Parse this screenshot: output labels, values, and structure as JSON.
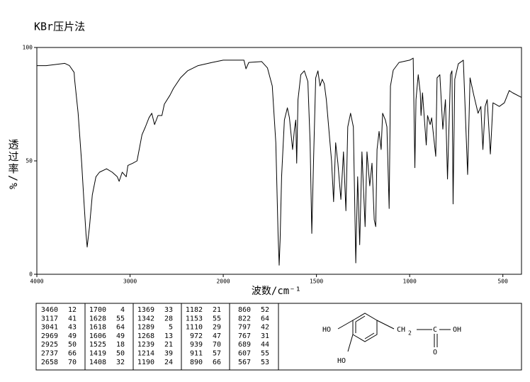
{
  "chart_data": {
    "type": "line",
    "title": "KBr压片法",
    "xlabel": "波数/cm⁻¹",
    "ylabel": "透过率/%",
    "x_scale": "tick-spaced",
    "xlim": [
      4000,
      400
    ],
    "xticks": [
      4000,
      3000,
      2000,
      1500,
      1000,
      500
    ],
    "ylim": [
      0,
      100
    ],
    "yticks": [
      0,
      50,
      100
    ],
    "series": [
      {
        "color": "#000000",
        "x": [
          4000,
          3900,
          3800,
          3700,
          3650,
          3600,
          3595,
          3557,
          3519,
          3496,
          3473,
          3460,
          3435,
          3405,
          3366,
          3328,
          3252,
          3191,
          3137,
          3117,
          3084,
          3041,
          3023,
          2969,
          2925,
          2872,
          2835,
          2797,
          2767,
          2737,
          2700,
          2658,
          2632,
          2571,
          2534,
          2459,
          2383,
          2270,
          2120,
          2000,
          1889,
          1878,
          1863,
          1794,
          1763,
          1737,
          1718,
          1706,
          1700,
          1695,
          1687,
          1672,
          1656,
          1645,
          1628,
          1618,
          1611,
          1606,
          1599,
          1584,
          1565,
          1546,
          1534,
          1525,
          1515,
          1504,
          1492,
          1481,
          1469,
          1458,
          1447,
          1419,
          1408,
          1397,
          1385,
          1369,
          1355,
          1342,
          1332,
          1317,
          1302,
          1289,
          1279,
          1268,
          1256,
          1239,
          1229,
          1214,
          1202,
          1190,
          1182,
          1175,
          1164,
          1153,
          1145,
          1130,
          1122,
          1110,
          1103,
          1088,
          1057,
          1000,
          981,
          972,
          966,
          954,
          943,
          939,
          931,
          911,
          904,
          890,
          882,
          860,
          853,
          838,
          822,
          808,
          797,
          781,
          773,
          767,
          758,
          739,
          712,
          689,
          676,
          656,
          633,
          618,
          607,
          595,
          584,
          567,
          553,
          519,
          492,
          466,
          447,
          400
        ],
        "values": [
          92,
          92,
          92.5,
          93,
          92,
          89,
          86,
          71,
          49,
          33,
          18,
          12,
          21,
          35,
          43,
          45,
          46.5,
          45,
          43,
          41,
          45,
          43,
          48,
          49,
          50,
          61.5,
          65,
          69,
          71,
          66,
          70,
          70,
          75,
          79,
          82,
          86.6,
          89.7,
          92,
          93.4,
          94.4,
          94.4,
          90.6,
          93.4,
          93.8,
          91,
          83,
          58,
          18,
          4,
          15,
          43,
          68,
          73.4,
          69,
          55,
          64,
          68,
          49,
          77,
          88,
          89.7,
          85,
          58,
          18,
          52,
          86.6,
          89.7,
          83,
          86,
          84,
          77,
          50,
          32,
          58,
          49,
          33,
          54,
          28,
          65,
          71,
          65,
          5,
          43,
          13,
          54,
          21,
          54,
          39,
          49,
          24,
          21,
          55,
          63,
          55,
          71,
          68,
          65,
          29,
          83,
          90,
          93.4,
          94.4,
          95.3,
          47,
          77,
          88,
          80,
          70,
          80,
          57,
          70,
          66,
          69,
          52,
          86.6,
          88,
          64,
          77,
          42,
          88,
          89.7,
          31,
          86,
          92.8,
          94.4,
          44,
          86.6,
          79,
          71,
          74,
          55,
          74,
          77,
          53,
          75.6,
          74,
          75.6,
          81,
          80,
          78
        ]
      }
    ],
    "peak_table": [
      [
        [
          "3460",
          "12"
        ],
        [
          "3117",
          "41"
        ],
        [
          "3041",
          "43"
        ],
        [
          "2969",
          "49"
        ],
        [
          "2925",
          "50"
        ],
        [
          "2737",
          "66"
        ],
        [
          "2658",
          "70"
        ]
      ],
      [
        [
          "1700",
          "4"
        ],
        [
          "1628",
          "55"
        ],
        [
          "1618",
          "64"
        ],
        [
          "1606",
          "49"
        ],
        [
          "1525",
          "18"
        ],
        [
          "1419",
          "50"
        ],
        [
          "1408",
          "32"
        ]
      ],
      [
        [
          "1369",
          "33"
        ],
        [
          "1342",
          "28"
        ],
        [
          "1289",
          "5"
        ],
        [
          "1268",
          "13"
        ],
        [
          "1239",
          "21"
        ],
        [
          "1214",
          "39"
        ],
        [
          "1190",
          "24"
        ]
      ],
      [
        [
          "1182",
          "21"
        ],
        [
          "1153",
          "55"
        ],
        [
          "1110",
          "29"
        ],
        [
          "972",
          "47"
        ],
        [
          "939",
          "70"
        ],
        [
          "911",
          "57"
        ],
        [
          "890",
          "66"
        ]
      ],
      [
        [
          "860",
          "52"
        ],
        [
          "822",
          "64"
        ],
        [
          "797",
          "42"
        ],
        [
          "767",
          "31"
        ],
        [
          "689",
          "44"
        ],
        [
          "607",
          "55"
        ],
        [
          "567",
          "53"
        ]
      ]
    ],
    "structure": {
      "labels": [
        "HO",
        "HO",
        "CH",
        "2",
        "C",
        "OH",
        "O"
      ]
    }
  }
}
